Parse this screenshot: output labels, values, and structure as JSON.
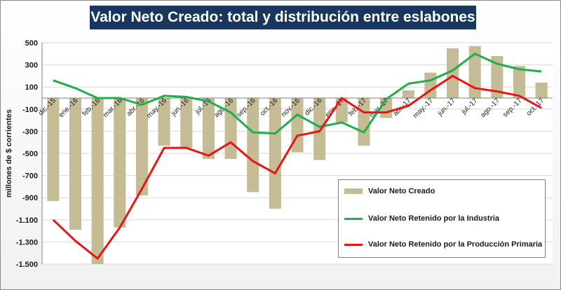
{
  "chart_data": {
    "type": "bar+line",
    "title": "Valor Neto Creado: total y distribución entre eslabones",
    "ylabel": "millones de $ corrientes",
    "xlabel": "",
    "ylim": [
      -1500,
      500
    ],
    "yticks": [
      500,
      300,
      100,
      -100,
      -300,
      -500,
      -700,
      -900,
      -1100,
      -1300,
      -1500
    ],
    "ytick_labels": [
      "500",
      "300",
      "100",
      "-100",
      "-300",
      "-500",
      "-700",
      "-900",
      "-1.100",
      "-1.300",
      "-1.500"
    ],
    "categories": [
      "dic.-15",
      "ene.-16",
      "feb.-16",
      "mar.-16",
      "abr.-16",
      "may.-16",
      "jun.-16",
      "jul.-16",
      "ago.-16",
      "sep.-16",
      "oct.-16",
      "nov.-16",
      "dic.-16",
      "ene.-17",
      "feb.-17",
      "mar.-17",
      "abr.-17",
      "may.-17",
      "jun.-17",
      "jul.-17",
      "ago.-17",
      "sep.-17",
      "oct.-17"
    ],
    "series": [
      {
        "name": "Valor Neto Creado",
        "kind": "bar",
        "color": "#c5bc95",
        "values": [
          -930,
          -1190,
          -1500,
          -1170,
          -880,
          -430,
          -450,
          -550,
          -550,
          -850,
          -1000,
          -490,
          -560,
          -220,
          -430,
          -180,
          70,
          230,
          450,
          470,
          380,
          290,
          140
        ]
      },
      {
        "name": "Valor Neto Retenido por la Industria",
        "kind": "line",
        "color": "#1fae4a",
        "values": [
          160,
          90,
          0,
          0,
          -60,
          20,
          10,
          -30,
          -130,
          -310,
          -320,
          -150,
          -260,
          -220,
          -310,
          -10,
          130,
          160,
          250,
          400,
          310,
          260,
          240
        ]
      },
      {
        "name": "Valor Neto Retenido por la Producción Primaria",
        "kind": "line",
        "color": "#e81416",
        "values": [
          -1100,
          -1290,
          -1450,
          -1170,
          -820,
          -450,
          -450,
          -520,
          -400,
          -570,
          -680,
          -340,
          -300,
          0,
          -130,
          -130,
          -70,
          70,
          200,
          90,
          60,
          20,
          -90
        ]
      }
    ],
    "grid": true,
    "legend": "bottom-right"
  }
}
